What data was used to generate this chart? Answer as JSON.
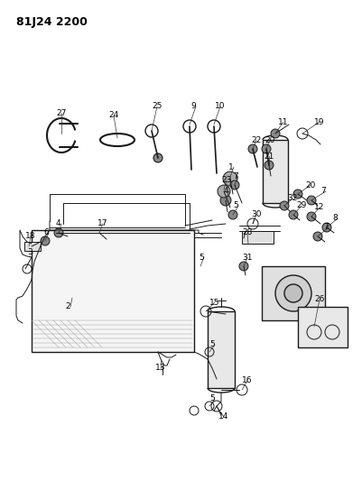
{
  "title": "81J24 2200",
  "bg_color": "#ffffff",
  "line_color": "#1a1a1a",
  "text_color": "#000000",
  "label_fontsize": 6.5,
  "fig_width": 4.01,
  "fig_height": 5.33,
  "dpi": 100
}
